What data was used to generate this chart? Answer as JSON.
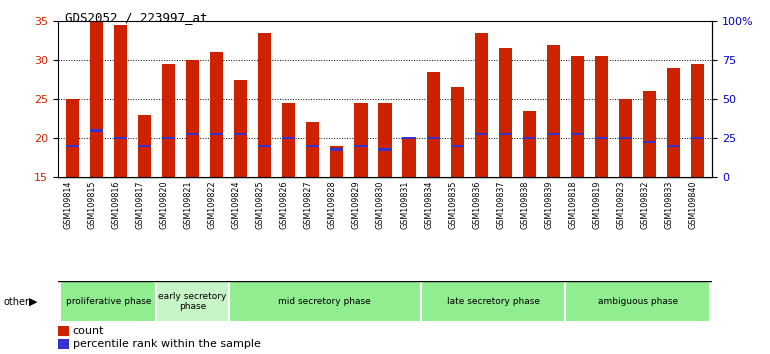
{
  "title": "GDS2052 / 223997_at",
  "samples": [
    "GSM109814",
    "GSM109815",
    "GSM109816",
    "GSM109817",
    "GSM109820",
    "GSM109821",
    "GSM109822",
    "GSM109824",
    "GSM109825",
    "GSM109826",
    "GSM109827",
    "GSM109828",
    "GSM109829",
    "GSM109830",
    "GSM109831",
    "GSM109834",
    "GSM109835",
    "GSM109836",
    "GSM109837",
    "GSM109838",
    "GSM109839",
    "GSM109818",
    "GSM109819",
    "GSM109823",
    "GSM109832",
    "GSM109833",
    "GSM109840"
  ],
  "count_values": [
    25,
    35,
    34.5,
    23,
    29.5,
    30,
    31,
    27.5,
    33.5,
    24.5,
    22,
    19,
    24.5,
    24.5,
    20,
    28.5,
    26.5,
    33.5,
    31.5,
    23.5,
    32,
    30.5,
    30.5,
    25,
    26,
    29,
    29.5
  ],
  "percentile_values": [
    19,
    21,
    20,
    19,
    20,
    20.5,
    20.5,
    20.5,
    19,
    20,
    19,
    18.5,
    19,
    18.5,
    20,
    20,
    19,
    20.5,
    20.5,
    20,
    20.5,
    20.5,
    20,
    20,
    19.5,
    19,
    20
  ],
  "phase_configs": [
    {
      "name": "proliferative phase",
      "start": 0,
      "end": 4,
      "color": "#90EE90"
    },
    {
      "name": "early secretory\nphase",
      "start": 4,
      "end": 7,
      "color": "#c8f5c8"
    },
    {
      "name": "mid secretory phase",
      "start": 7,
      "end": 15,
      "color": "#90EE90"
    },
    {
      "name": "late secretory phase",
      "start": 15,
      "end": 21,
      "color": "#90EE90"
    },
    {
      "name": "ambiguous phase",
      "start": 21,
      "end": 27,
      "color": "#90EE90"
    }
  ],
  "bar_color": "#CC2200",
  "percentile_color": "#3333CC",
  "y_min": 15,
  "y_max": 35,
  "y_ticks": [
    15,
    20,
    25,
    30,
    35
  ],
  "y2_ticks": [
    0,
    25,
    50,
    75,
    100
  ],
  "background_color": "#ffffff",
  "tick_label_color_left": "#CC2200",
  "tick_label_color_right": "#0000CC",
  "grid_yticks": [
    20,
    25,
    30
  ]
}
